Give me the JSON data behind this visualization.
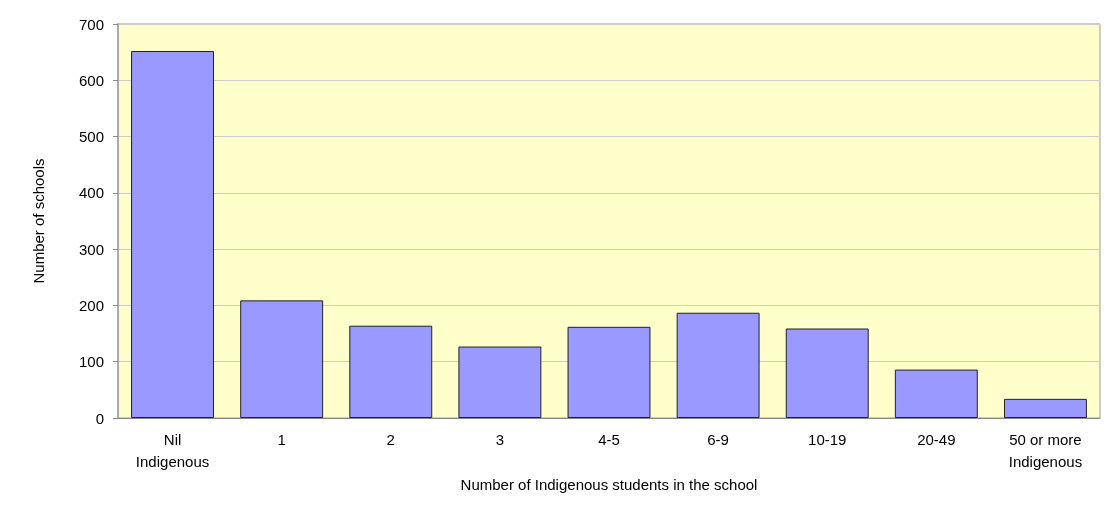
{
  "chart_data": {
    "type": "bar",
    "xlabel": "Number of Indigenous students in the school",
    "ylabel": "Number of schools",
    "categories": [
      "Nil\nIndigenous",
      "1",
      "2",
      "3",
      "4-5",
      "6-9",
      "10-19",
      "20-49",
      "50 or more\nIndigenous"
    ],
    "values": [
      652,
      209,
      164,
      127,
      162,
      187,
      159,
      86,
      34
    ],
    "color": "#9999ff",
    "ylim": [
      0,
      700
    ],
    "yticks": [
      0,
      100,
      200,
      300,
      400,
      500,
      600,
      700
    ],
    "grid": "y"
  }
}
